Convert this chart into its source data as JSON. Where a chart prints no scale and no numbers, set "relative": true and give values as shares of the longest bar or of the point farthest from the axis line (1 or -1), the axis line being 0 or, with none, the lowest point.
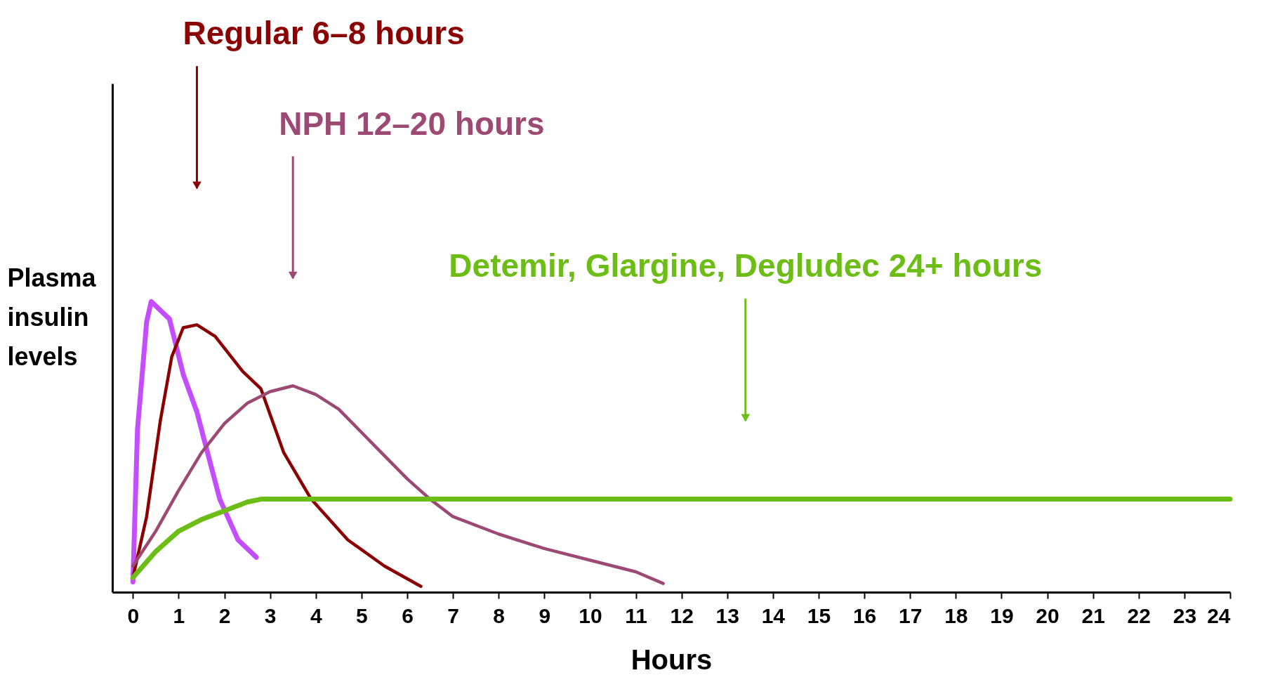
{
  "chart_data": {
    "type": "line",
    "relative": true,
    "xlabel": "Hours",
    "ylabel": "Plasma insulin levels",
    "xlim": [
      -0.45,
      24
    ],
    "xticks": [
      0,
      1,
      2,
      3,
      4,
      5,
      6,
      7,
      8,
      9,
      10,
      11,
      12,
      13,
      14,
      15,
      16,
      17,
      18,
      19,
      20,
      21,
      22,
      23,
      24
    ],
    "line_style": "solid",
    "marker": "none",
    "series": [
      {
        "color": "#c44dff",
        "x": [
          0,
          0.1,
          0.3,
          0.4,
          0.6,
          0.8,
          1.1,
          1.4,
          1.75,
          1.9,
          2.3,
          2.7
        ],
        "values": [
          0.035,
          0.56,
          0.93,
          1,
          0.97,
          0.94,
          0.75,
          0.62,
          0.41,
          0.32,
          0.18,
          0.12
        ]
      },
      {
        "color": "#8b0000",
        "x": [
          0,
          0.3,
          0.6,
          0.85,
          1.1,
          1.4,
          1.8,
          2.4,
          2.8,
          3.3,
          3.9,
          4.7,
          5.5,
          6.3
        ],
        "values": [
          0.05,
          0.26,
          0.59,
          0.81,
          0.91,
          0.92,
          0.88,
          0.76,
          0.7,
          0.48,
          0.32,
          0.18,
          0.09,
          0.02
        ]
      },
      {
        "color": "#9c4a74",
        "x": [
          0,
          0.5,
          1,
          1.5,
          2,
          2.5,
          3,
          3.5,
          4,
          4.5,
          5,
          5.5,
          6,
          6.5,
          7,
          8,
          9,
          10,
          11,
          11.6
        ],
        "values": [
          0.09,
          0.21,
          0.35,
          0.48,
          0.58,
          0.65,
          0.69,
          0.71,
          0.68,
          0.63,
          0.55,
          0.47,
          0.39,
          0.32,
          0.26,
          0.2,
          0.15,
          0.11,
          0.07,
          0.03
        ]
      },
      {
        "color": "#6cbd16",
        "x": [
          0,
          0.5,
          1,
          1.5,
          2,
          2.5,
          2.8,
          5,
          10,
          15,
          20,
          24
        ],
        "values": [
          0.05,
          0.14,
          0.21,
          0.25,
          0.28,
          0.31,
          0.32,
          0.32,
          0.32,
          0.32,
          0.32,
          0.32
        ]
      }
    ],
    "annotations": [
      "Regular 6–8 hours",
      "NPH 12–20 hours",
      "Detemir, Glargine, Degludec 24+ hours"
    ]
  }
}
